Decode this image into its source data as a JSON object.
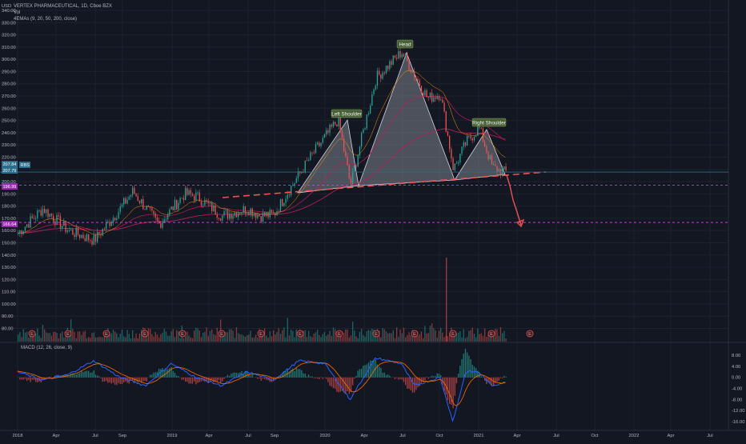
{
  "header": {
    "symbol_line": "VERTEX PHARMACEUTICAL, 1D, Cboe BZX",
    "vol_label": "Vol",
    "ema_label": "4EMAs (9, 20, 50, 200, close)",
    "currency": "USD"
  },
  "macd_label": "MACD (12, 26, close, 9)",
  "price_axis_ticks": [
    "340.00",
    "330.00",
    "320.00",
    "310.00",
    "300.00",
    "290.00",
    "280.00",
    "270.00",
    "260.00",
    "250.00",
    "240.00",
    "230.00",
    "220.00",
    "210.00",
    "200.00",
    "190.00",
    "180.00",
    "170.00",
    "160.00",
    "150.00",
    "140.00",
    "130.00",
    "120.00",
    "110.00",
    "100.00",
    "90.00",
    "80.00"
  ],
  "price_tags": [
    {
      "text": "207.84",
      "color": "#2a6e8c"
    },
    {
      "text": "207.79",
      "color": "#2a6e8c"
    },
    {
      "text": "196.99",
      "color": "#9c27b0"
    },
    {
      "text": "166.64",
      "color": "#9c27b0"
    },
    {
      "text": "RBS",
      "color": "#2a6e8c"
    }
  ],
  "macd_axis_ticks": [
    "8.00",
    "4.00",
    "0.00",
    "-4.00",
    "-8.00",
    "-12.00",
    "-16.00"
  ],
  "time_axis_ticks": [
    "2018",
    "Apr",
    "Jul",
    "Sep",
    "2019",
    "Apr",
    "Jul",
    "Sep",
    "2020",
    "Apr",
    "Jul",
    "Oct",
    "2021",
    "Apr",
    "Jul",
    "Oct",
    "2022",
    "Apr",
    "Jul"
  ],
  "annotations": {
    "left_shoulder": "Left Shoulder",
    "head": "Head",
    "right_shoulder": "Right Shoulder"
  },
  "earnings_marker": "E",
  "colors": {
    "up": "#26a69a",
    "down": "#ef5350",
    "pattern_fill": "#9598a1",
    "neckline": "#ef5350",
    "level": "#e040fb",
    "macd": "#2962ff",
    "signal": "#ff6d00"
  },
  "chart_data": {
    "type": "candlestick",
    "ylim": [
      80,
      340
    ],
    "levels": [
      196.99,
      166.64
    ],
    "last_price": 207.84,
    "neckline": {
      "from": [
        "2019-04",
        186
      ],
      "to": [
        "2021-06",
        213
      ]
    },
    "pattern_points": [
      {
        "label": "Left Shoulder",
        "date": "2020-02",
        "price": 251
      },
      {
        "label": "Head",
        "date": "2020-07",
        "price": 306
      },
      {
        "label": "Right Shoulder",
        "date": "2021-01",
        "price": 244
      }
    ],
    "projection": {
      "from": 205,
      "to": 166.64
    },
    "price_path": [
      {
        "x": "2018-01",
        "y": 158
      },
      {
        "x": "2018-03",
        "y": 178
      },
      {
        "x": "2018-05",
        "y": 160
      },
      {
        "x": "2018-07",
        "y": 152
      },
      {
        "x": "2018-09",
        "y": 178
      },
      {
        "x": "2018-10",
        "y": 192
      },
      {
        "x": "2018-12",
        "y": 165
      },
      {
        "x": "2019-02",
        "y": 190
      },
      {
        "x": "2019-03",
        "y": 188
      },
      {
        "x": "2019-05",
        "y": 172
      },
      {
        "x": "2019-07",
        "y": 178
      },
      {
        "x": "2019-08",
        "y": 172
      },
      {
        "x": "2019-09",
        "y": 173
      },
      {
        "x": "2019-10",
        "y": 190
      },
      {
        "x": "2019-12",
        "y": 222
      },
      {
        "x": "2020-02",
        "y": 251
      },
      {
        "x": "2020-03",
        "y": 197
      },
      {
        "x": "2020-05",
        "y": 285
      },
      {
        "x": "2020-07",
        "y": 306
      },
      {
        "x": "2020-09",
        "y": 268
      },
      {
        "x": "2020-10",
        "y": 272
      },
      {
        "x": "2020-11",
        "y": 210
      },
      {
        "x": "2020-12",
        "y": 232
      },
      {
        "x": "2021-01",
        "y": 244
      },
      {
        "x": "2021-02",
        "y": 212
      },
      {
        "x": "2021-02-26",
        "y": 207.84
      }
    ],
    "macd_ylim": [
      -16,
      8
    ],
    "macd_path": [
      {
        "x": "2018-01",
        "y": 2
      },
      {
        "x": "2018-03",
        "y": -1
      },
      {
        "x": "2018-05",
        "y": 1
      },
      {
        "x": "2018-07",
        "y": 6
      },
      {
        "x": "2018-09",
        "y": 0
      },
      {
        "x": "2018-11",
        "y": -3
      },
      {
        "x": "2019-01",
        "y": 5
      },
      {
        "x": "2019-03",
        "y": 0
      },
      {
        "x": "2019-05",
        "y": -3
      },
      {
        "x": "2019-07",
        "y": 2
      },
      {
        "x": "2019-09",
        "y": -1
      },
      {
        "x": "2019-11",
        "y": 6
      },
      {
        "x": "2020-01",
        "y": 5
      },
      {
        "x": "2020-03",
        "y": -8
      },
      {
        "x": "2020-05",
        "y": 7
      },
      {
        "x": "2020-07",
        "y": 5
      },
      {
        "x": "2020-08",
        "y": -3
      },
      {
        "x": "2020-10",
        "y": 0
      },
      {
        "x": "2020-11",
        "y": -16
      },
      {
        "x": "2020-12",
        "y": 2
      },
      {
        "x": "2021-01",
        "y": 2
      },
      {
        "x": "2021-02",
        "y": -3
      },
      {
        "x": "2021-02-26",
        "y": -2
      }
    ]
  }
}
